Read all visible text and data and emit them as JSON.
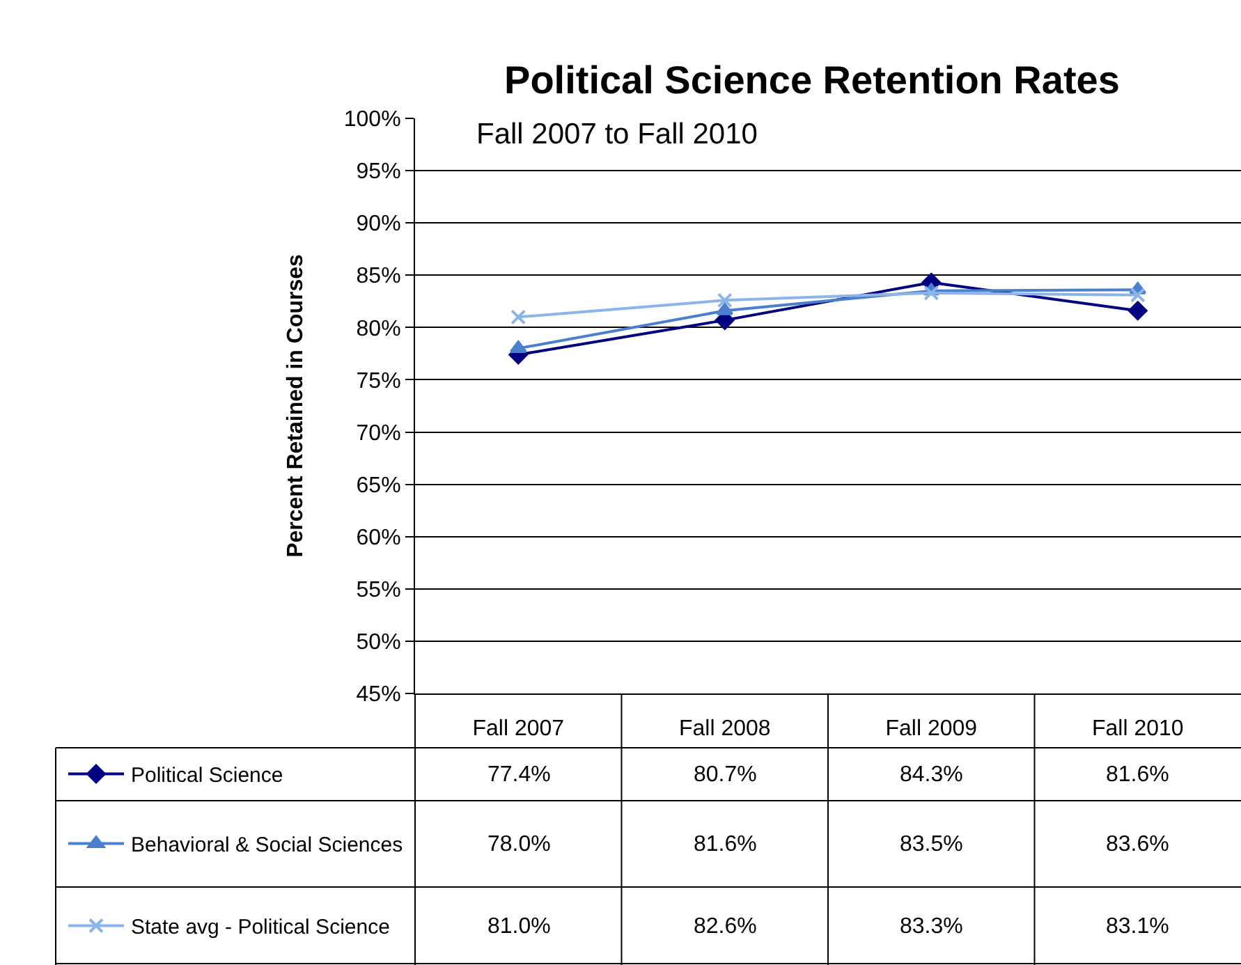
{
  "chart_data": {
    "type": "line",
    "title": "Political Science Retention Rates",
    "ylabel": "Percent Retained in Courses",
    "annotations": [
      "Fall 2007 to Fall 2010"
    ],
    "categories": [
      "Fall 2007",
      "Fall 2008",
      "Fall 2009",
      "Fall 2010"
    ],
    "series": [
      {
        "name": "Political Science",
        "color": "#000080",
        "marker": "diamond",
        "values": [
          77.4,
          80.7,
          84.3,
          81.6
        ],
        "value_labels": [
          "77.4%",
          "80.7%",
          "84.3%",
          "81.6%"
        ]
      },
      {
        "name": "Behavioral & Social Sciences",
        "color": "#4a7fd0",
        "marker": "triangle",
        "values": [
          78.0,
          81.6,
          83.5,
          83.6
        ],
        "value_labels": [
          "78.0%",
          "81.6%",
          "83.5%",
          "83.6%"
        ]
      },
      {
        "name": "State avg - Political Science",
        "color": "#8db4e8",
        "marker": "cross",
        "values": [
          81.0,
          82.6,
          83.3,
          83.1
        ],
        "value_labels": [
          "81.0%",
          "82.6%",
          "83.3%",
          "83.1%"
        ]
      }
    ],
    "ylim": [
      45,
      100
    ],
    "yticks": [
      {
        "value": 45,
        "label": "45%"
      },
      {
        "value": 50,
        "label": "50%"
      },
      {
        "value": 55,
        "label": "55%"
      },
      {
        "value": 60,
        "label": "60%"
      },
      {
        "value": 65,
        "label": "65%"
      },
      {
        "value": 70,
        "label": "70%"
      },
      {
        "value": 75,
        "label": "75%"
      },
      {
        "value": 80,
        "label": "80%"
      },
      {
        "value": 85,
        "label": "85%"
      },
      {
        "value": 90,
        "label": "90%"
      },
      {
        "value": 95,
        "label": "95%"
      },
      {
        "value": 100,
        "label": "100%"
      }
    ],
    "grid": "y",
    "legend": "bottom left",
    "line_style": "solid"
  }
}
